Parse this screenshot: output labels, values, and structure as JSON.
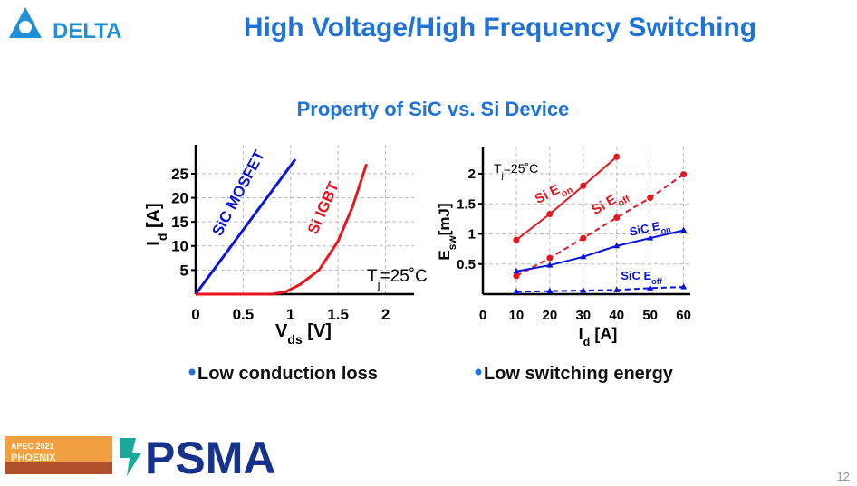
{
  "header": {
    "logo": "DELTA",
    "title": "High Voltage/High Frequency Switching",
    "subtitle": "Property of SiC vs. Si Device"
  },
  "chart_data": [
    {
      "type": "line",
      "xlabel": [
        {
          "text": "V"
        },
        {
          "text": "ds",
          "sub": true
        },
        {
          "text": " [V]"
        }
      ],
      "ylabel": [
        {
          "text": "I"
        },
        {
          "text": "d",
          "sub": true
        },
        {
          "text": " [A]"
        }
      ],
      "xlim": [
        0,
        2.3
      ],
      "ylim": [
        0,
        31
      ],
      "xticks": [
        0,
        0.5,
        1,
        1.5,
        2
      ],
      "yticks": [
        5,
        10,
        15,
        20,
        25
      ],
      "grid": true,
      "annotation": [
        {
          "text": "T"
        },
        {
          "text": "j",
          "sub": true
        },
        {
          "text": "=25˚C"
        }
      ],
      "series": [
        {
          "name": "SiC MOSFET",
          "color": "#0a14d8",
          "x": [
            0,
            1.05
          ],
          "values": [
            0,
            28
          ]
        },
        {
          "name": "Si IGBT",
          "color": "#e8141e",
          "x": [
            0,
            0.8,
            0.95,
            1.1,
            1.3,
            1.5,
            1.65,
            1.8
          ],
          "values": [
            0,
            0,
            0.5,
            2,
            5,
            11,
            18,
            27
          ]
        }
      ]
    },
    {
      "type": "line",
      "xlabel": [
        {
          "text": "I"
        },
        {
          "text": "d",
          "sub": true
        },
        {
          "text": " [A]"
        }
      ],
      "ylabel": [
        {
          "text": "E"
        },
        {
          "text": "sw",
          "sub": true
        },
        {
          "text": "[mJ]"
        }
      ],
      "xlim": [
        0,
        62
      ],
      "ylim": [
        0,
        2.45
      ],
      "xticks": [
        0,
        10,
        20,
        30,
        40,
        50,
        60
      ],
      "yticks": [
        0.5,
        1,
        1.5,
        2
      ],
      "grid": true,
      "annotation": [
        {
          "text": "T"
        },
        {
          "text": "j",
          "sub": true
        },
        {
          "text": "=25˚C"
        }
      ],
      "series": [
        {
          "name": "Si E",
          "name_sub": "on",
          "color": "#e8141e",
          "marker": "circle",
          "dash": false,
          "x": [
            10,
            20,
            30,
            40
          ],
          "values": [
            0.9,
            1.33,
            1.8,
            2.28
          ]
        },
        {
          "name": "Si E",
          "name_sub": "off",
          "color": "#e8141e",
          "marker": "circle",
          "dash": true,
          "x": [
            10,
            20,
            30,
            40,
            50,
            60
          ],
          "values": [
            0.3,
            0.6,
            0.93,
            1.27,
            1.6,
            1.99
          ]
        },
        {
          "name": "SiC E",
          "name_sub": "on",
          "color": "#0a14d8",
          "marker": "triangle",
          "dash": false,
          "x": [
            10,
            20,
            30,
            40,
            50,
            60
          ],
          "values": [
            0.38,
            0.48,
            0.62,
            0.8,
            0.93,
            1.06
          ]
        },
        {
          "name": "SiC E",
          "name_sub": "off",
          "color": "#0a14d8",
          "marker": "triangle",
          "dash": true,
          "x": [
            10,
            20,
            30,
            40,
            50,
            60
          ],
          "values": [
            0.04,
            0.05,
            0.06,
            0.07,
            0.1,
            0.12
          ]
        }
      ]
    }
  ],
  "bullets": [
    "Low conduction loss",
    "Low switching energy"
  ],
  "footer": {
    "event": "APEC 2021",
    "city": "PHOENIX",
    "org": "PSMA",
    "page": 12
  }
}
